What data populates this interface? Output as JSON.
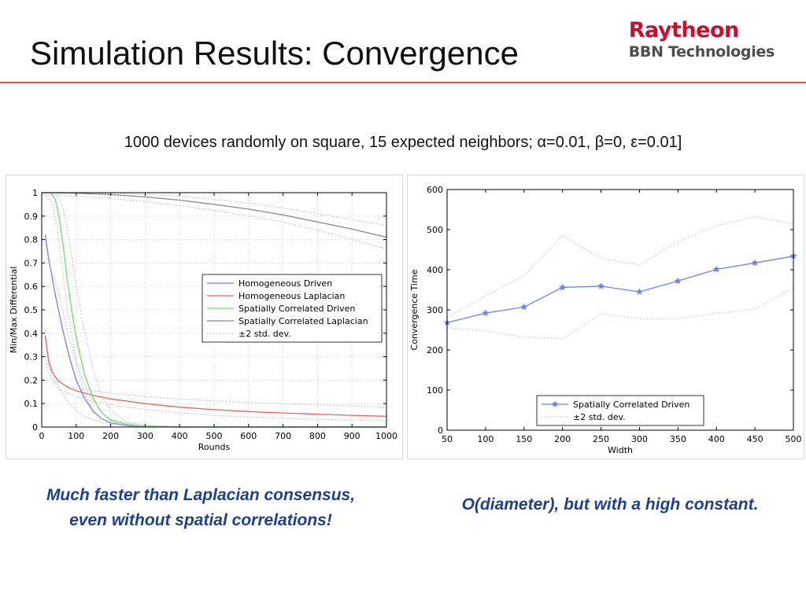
{
  "slide": {
    "title": "Simulation Results: Convergence",
    "logo_line1": "Raytheon",
    "logo_line2": "BBN Technologies",
    "subtitle": "1000 devices randomly on square, 15 expected neighbors; α=0.01, β=0, ε=0.01]",
    "caption_left_line1": "Much faster than Laplacian consensus,",
    "caption_left_line2": "even without spatial correlations!",
    "caption_right": "O(diameter), but with a high constant.",
    "colors": {
      "title_rule": "#d9534f",
      "caption": "#1f3f8f",
      "logo_red": "#c8102e",
      "logo_gray": "#4d4d4d"
    }
  },
  "chart_data": [
    {
      "type": "line",
      "xlabel": "Rounds",
      "ylabel": "Min/Max Differential",
      "xlim": [
        0,
        1000
      ],
      "ylim": [
        0,
        1
      ],
      "xticks": [
        0,
        100,
        200,
        300,
        400,
        500,
        600,
        700,
        800,
        900,
        1000
      ],
      "yticks": [
        0,
        0.1,
        0.2,
        0.3,
        0.4,
        0.5,
        0.6,
        0.7,
        0.8,
        0.9,
        1
      ],
      "grid": true,
      "legend_position": "center-right",
      "series": [
        {
          "name": "Homogeneous Driven",
          "color": "#6f7ff0",
          "style": "solid",
          "x": [
            10,
            20,
            40,
            60,
            80,
            100,
            125,
            150,
            175,
            200,
            250,
            300,
            400,
            600,
            1000
          ],
          "y": [
            0.82,
            0.72,
            0.56,
            0.42,
            0.3,
            0.2,
            0.12,
            0.065,
            0.035,
            0.018,
            0.006,
            0.002,
            0.0,
            0.0,
            0.0
          ]
        },
        {
          "name": "Homogeneous Laplacian",
          "color": "#f06060",
          "style": "solid",
          "x": [
            10,
            20,
            30,
            50,
            75,
            100,
            150,
            200,
            300,
            400,
            500,
            600,
            700,
            800,
            900,
            1000
          ],
          "y": [
            0.39,
            0.28,
            0.235,
            0.195,
            0.17,
            0.155,
            0.135,
            0.12,
            0.1,
            0.085,
            0.074,
            0.066,
            0.06,
            0.055,
            0.05,
            0.046
          ]
        },
        {
          "name": "Spatially Correlated Driven",
          "color": "#66e066",
          "style": "solid",
          "x": [
            0,
            25,
            40,
            50,
            60,
            75,
            90,
            100,
            125,
            150,
            175,
            200,
            250,
            300,
            400,
            1000
          ],
          "y": [
            1.0,
            1.0,
            0.97,
            0.9,
            0.8,
            0.62,
            0.47,
            0.38,
            0.22,
            0.12,
            0.06,
            0.03,
            0.01,
            0.003,
            0.0,
            0.0
          ]
        },
        {
          "name": "Spatially Correlated Laplacian",
          "color": "#888888",
          "style": "solid",
          "x": [
            0,
            100,
            200,
            300,
            400,
            500,
            600,
            700,
            800,
            900,
            1000
          ],
          "y": [
            1.0,
            0.998,
            0.992,
            0.982,
            0.968,
            0.95,
            0.93,
            0.905,
            0.875,
            0.845,
            0.81
          ]
        },
        {
          "name": "±2 std. dev.",
          "color": "#bbbbbb",
          "style": "dotted",
          "x": [
            0,
            100,
            200,
            300,
            400,
            500,
            600,
            700,
            800,
            900,
            1000
          ],
          "y": [
            1.0,
            1.0,
            0.998,
            0.993,
            0.985,
            0.972,
            0.955,
            0.935,
            0.91,
            0.885,
            0.86
          ]
        },
        {
          "name": "",
          "color": "#bbbbbb",
          "style": "dotted",
          "x": [
            0,
            100,
            200,
            300,
            400,
            500,
            600,
            700,
            800,
            900,
            1000
          ],
          "y": [
            0.99,
            0.985,
            0.975,
            0.962,
            0.945,
            0.925,
            0.9,
            0.875,
            0.84,
            0.8,
            0.76
          ]
        },
        {
          "name": "",
          "color": "#bbbbbb",
          "style": "dotted",
          "x": [
            10,
            20,
            40,
            60,
            80,
            100,
            125,
            150,
            175,
            200,
            250,
            300,
            400
          ],
          "y": [
            0.8,
            0.7,
            0.62,
            0.5,
            0.38,
            0.28,
            0.18,
            0.1,
            0.06,
            0.035,
            0.015,
            0.006,
            0.002
          ]
        },
        {
          "name": "",
          "color": "#bbbbbb",
          "style": "dotted",
          "x": [
            10,
            20,
            40,
            60,
            80,
            100,
            125,
            150,
            175,
            200,
            250,
            300
          ],
          "y": [
            0.42,
            0.3,
            0.2,
            0.14,
            0.1,
            0.07,
            0.045,
            0.03,
            0.02,
            0.012,
            0.004,
            0.001
          ]
        },
        {
          "name": "",
          "color": "#bbbbbb",
          "style": "dotted",
          "x": [
            10,
            30,
            50,
            100,
            150,
            200,
            300,
            400,
            500,
            600,
            700,
            800,
            900,
            1000
          ],
          "y": [
            0.3,
            0.22,
            0.19,
            0.165,
            0.155,
            0.145,
            0.13,
            0.12,
            0.112,
            0.105,
            0.1,
            0.095,
            0.09,
            0.085
          ]
        },
        {
          "name": "",
          "color": "#bbbbbb",
          "style": "dotted",
          "x": [
            10,
            30,
            50,
            100,
            150,
            200,
            300,
            400,
            500,
            600,
            700,
            800,
            900,
            1000
          ],
          "y": [
            0.27,
            0.2,
            0.16,
            0.13,
            0.11,
            0.095,
            0.075,
            0.06,
            0.05,
            0.043,
            0.038,
            0.033,
            0.03,
            0.027
          ]
        },
        {
          "name": "",
          "color": "#bbbbbb",
          "style": "dotted",
          "x": [
            0,
            40,
            60,
            80,
            100,
            125,
            150,
            175,
            200,
            250,
            300,
            400
          ],
          "y": [
            1.0,
            1.0,
            0.95,
            0.8,
            0.6,
            0.4,
            0.24,
            0.13,
            0.07,
            0.02,
            0.008,
            0.002
          ]
        },
        {
          "name": "",
          "color": "#bbbbbb",
          "style": "dotted",
          "x": [
            0,
            30,
            45,
            60,
            75,
            100,
            125,
            150,
            175,
            200,
            300
          ],
          "y": [
            1.0,
            0.96,
            0.85,
            0.68,
            0.5,
            0.28,
            0.14,
            0.07,
            0.035,
            0.015,
            0.001
          ]
        }
      ]
    },
    {
      "type": "line",
      "xlabel": "Width",
      "ylabel": "Convergence Time",
      "xlim": [
        50,
        500
      ],
      "ylim": [
        0,
        600
      ],
      "xticks": [
        50,
        100,
        150,
        200,
        250,
        300,
        350,
        400,
        450,
        500
      ],
      "yticks": [
        0,
        100,
        200,
        300,
        400,
        500,
        600
      ],
      "grid": false,
      "legend_position": "bottom-center",
      "series": [
        {
          "name": "Spatially Correlated Driven",
          "color": "#6f7ff0",
          "style": "solid",
          "marker": "star",
          "x": [
            50,
            100,
            150,
            200,
            250,
            300,
            350,
            400,
            450,
            500
          ],
          "y": [
            268,
            292,
            307,
            356,
            359,
            345,
            372,
            401,
            417,
            434
          ]
        },
        {
          "name": "±2 std. dev.",
          "color": "#b8bff5",
          "style": "dotted",
          "x": [
            50,
            100,
            150,
            200,
            250,
            300,
            350,
            400,
            450,
            500
          ],
          "y": [
            280,
            335,
            385,
            485,
            428,
            412,
            470,
            510,
            532,
            515
          ]
        },
        {
          "name": "",
          "color": "#b8bff5",
          "style": "dotted",
          "x": [
            50,
            100,
            150,
            200,
            250,
            300,
            350,
            400,
            450,
            500
          ],
          "y": [
            255,
            248,
            232,
            228,
            290,
            278,
            278,
            292,
            302,
            355
          ]
        }
      ]
    }
  ]
}
